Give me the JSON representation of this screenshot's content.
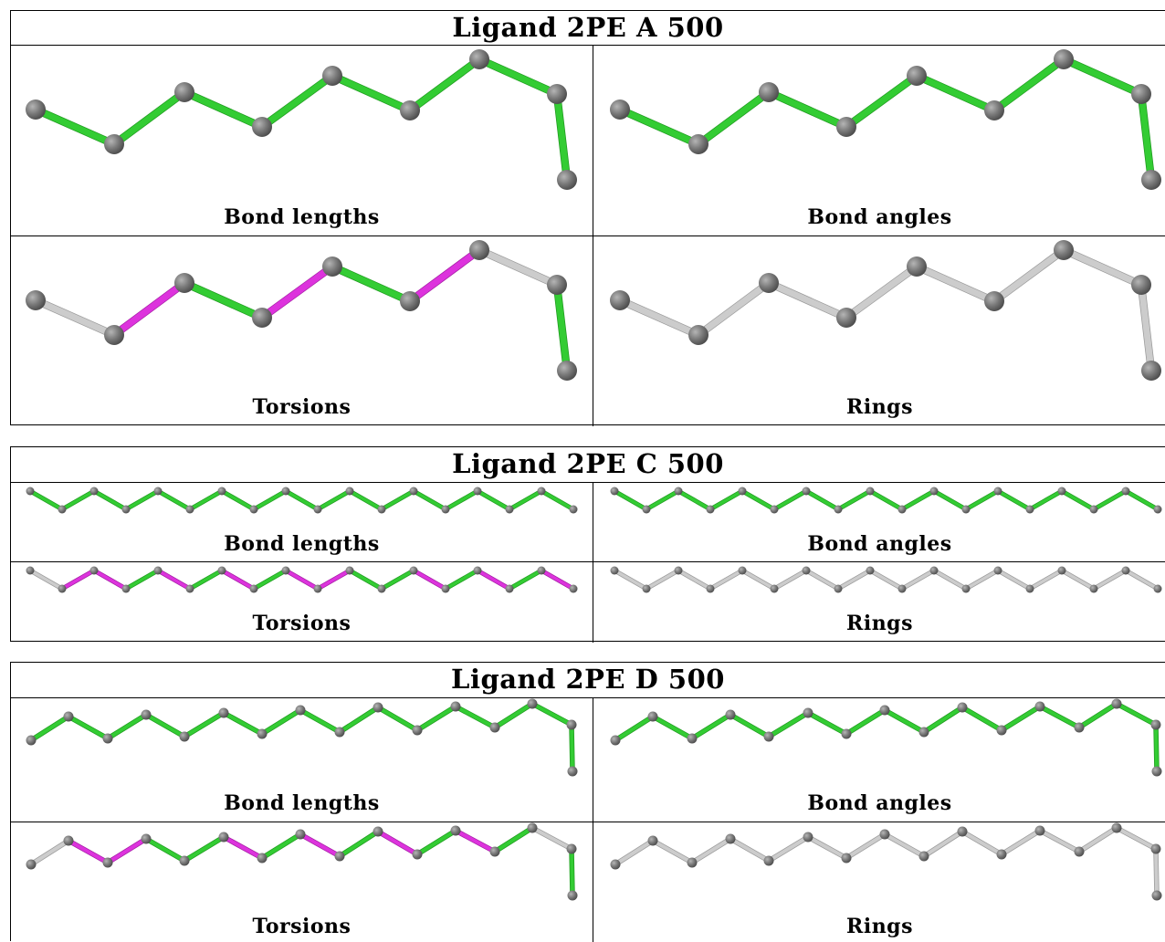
{
  "colors": {
    "ok_bond": "#33cc33",
    "outlier_bond": "#dd33dd",
    "neutral_bond": "#cccccc",
    "atom": "#777777"
  },
  "panels": [
    {
      "title": "Ligand 2PE A 500",
      "captions": [
        "Bond lengths",
        "Bond angles",
        "Torsions",
        "Rings"
      ],
      "torsion_bond_colors": [
        "grey",
        "magenta",
        "green",
        "magenta",
        "green",
        "magenta",
        "grey"
      ],
      "ring_bond_colors": "grey"
    },
    {
      "title": "Ligand 2PE C 500",
      "captions": [
        "Bond lengths",
        "Bond angles",
        "Torsions",
        "Rings"
      ],
      "torsion_bond_colors": [
        "grey",
        "magenta",
        "magenta",
        "green",
        "magenta",
        "green",
        "magenta",
        "green",
        "magenta",
        "magenta",
        "green",
        "green",
        "magenta",
        "green",
        "magenta",
        "green",
        "magenta",
        "grey"
      ],
      "ring_bond_colors": "grey"
    },
    {
      "title": "Ligand 2PE D 500",
      "captions": [
        "Bond lengths",
        "Bond angles",
        "Torsions",
        "Rings"
      ],
      "torsion_bond_colors": [
        "grey",
        "magenta",
        "magenta",
        "green",
        "green",
        "magenta",
        "green",
        "magenta",
        "green",
        "magenta",
        "green",
        "magenta",
        "green",
        "grey"
      ],
      "ring_bond_colors": "grey"
    }
  ]
}
